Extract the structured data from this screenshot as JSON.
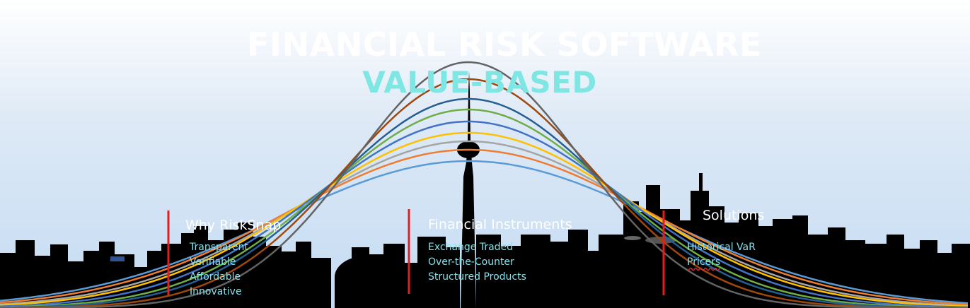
{
  "title": "FINANCIAL RISK SOFTWARE",
  "subtitle": "VALUE-BASED",
  "sections": [
    {
      "heading": "Why RiskSnap",
      "items": [
        "Transparent",
        "Verifiable",
        "Affordable",
        "Innovative"
      ]
    },
    {
      "heading": "Financial Instruments",
      "items": [
        "Exchange Traded",
        "Over-the-Counter",
        "Structured Products"
      ]
    },
    {
      "heading": "Solutions",
      "items": [
        "Historical VaR",
        "Pricers"
      ]
    }
  ],
  "colors": {
    "sky_top": "#ffffff",
    "sky_bottom": "#c4dbf2",
    "title": "#ffffff",
    "subtitle": "#7fe6e4",
    "section_items": "#86e0ea",
    "divider": "#e02020",
    "skyline": "#000000",
    "curves": [
      "#5b9bd5",
      "#ed7d31",
      "#a5a5a5",
      "#ffc000",
      "#4472c4",
      "#70ad47",
      "#255e91",
      "#9e480e",
      "#636363"
    ]
  }
}
